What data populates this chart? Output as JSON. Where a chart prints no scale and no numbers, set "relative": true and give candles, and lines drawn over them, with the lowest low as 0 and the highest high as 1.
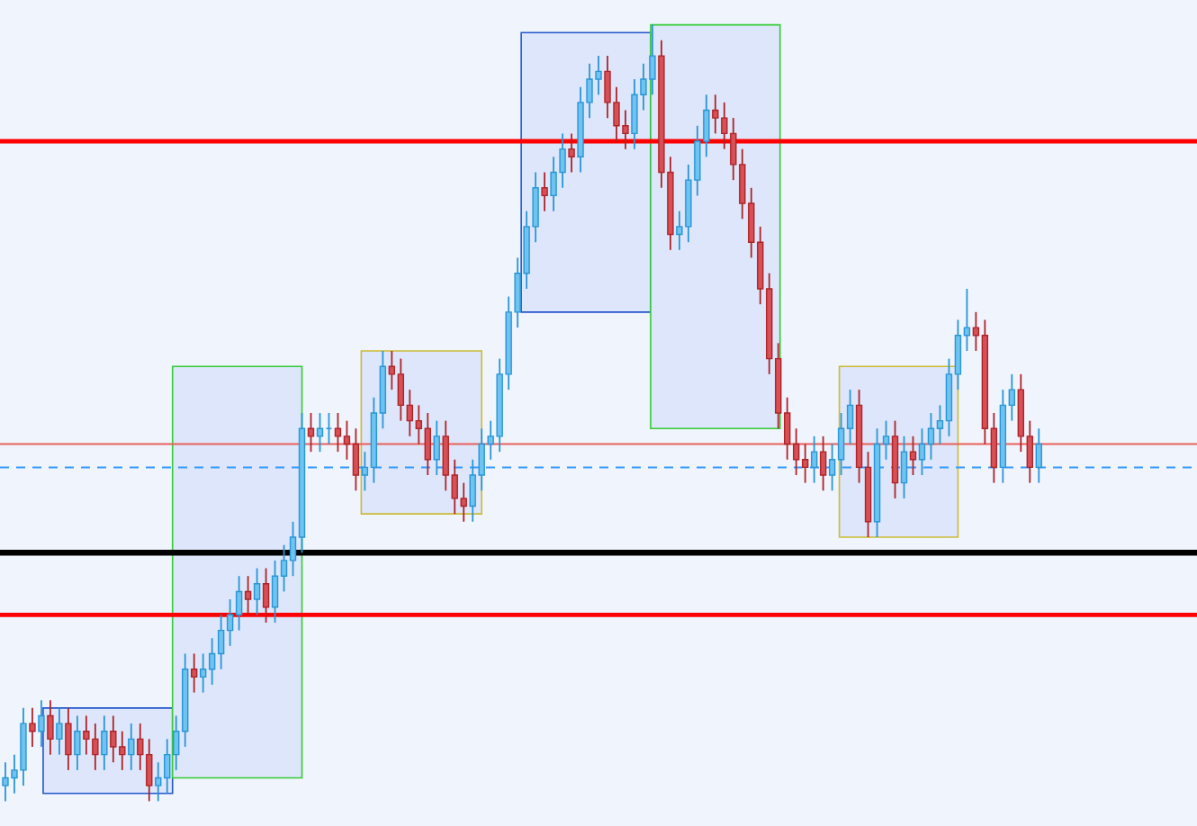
{
  "chart_data": {
    "type": "candlestick",
    "relative": true,
    "tick_labels": false,
    "categories": [
      null,
      null,
      null,
      null,
      null,
      null,
      null,
      null,
      null,
      null,
      null,
      null,
      null,
      null,
      null,
      null,
      null,
      null,
      null,
      null,
      null,
      null,
      null,
      null,
      null,
      null,
      null,
      null,
      null,
      null,
      null,
      null,
      null,
      null,
      null,
      null,
      null,
      null,
      null,
      null,
      null,
      null,
      null,
      null,
      null,
      null,
      null,
      null,
      null,
      null,
      null,
      null,
      null,
      null,
      null,
      null,
      null,
      null,
      null,
      null,
      null,
      null,
      null,
      null,
      null,
      null,
      null,
      null,
      null,
      null,
      null,
      null,
      null,
      null,
      null,
      null,
      null,
      null,
      null,
      null,
      null,
      null,
      null,
      null,
      null,
      null,
      null,
      null,
      null,
      null,
      null,
      null,
      null,
      null,
      null,
      null,
      null,
      null,
      null,
      null,
      null,
      null,
      null,
      null,
      null,
      null,
      null,
      null,
      null,
      null,
      null,
      null,
      null,
      null,
      null,
      null,
      null,
      null,
      null,
      null,
      null,
      null,
      null,
      null,
      null,
      null,
      null,
      null,
      null,
      null,
      null,
      null,
      null
    ],
    "ohlc": [
      [
        0.02,
        0.05,
        0,
        0.03
      ],
      [
        0.03,
        0.06,
        0.01,
        0.04
      ],
      [
        0.04,
        0.12,
        0.02,
        0.1
      ],
      [
        0.1,
        0.12,
        0.07,
        0.09
      ],
      [
        0.09,
        0.13,
        0.07,
        0.11
      ],
      [
        0.11,
        0.13,
        0.06,
        0.08
      ],
      [
        0.08,
        0.12,
        0.06,
        0.1
      ],
      [
        0.1,
        0.12,
        0.04,
        0.06
      ],
      [
        0.06,
        0.11,
        0.04,
        0.09
      ],
      [
        0.09,
        0.11,
        0.06,
        0.08
      ],
      [
        0.08,
        0.1,
        0.04,
        0.06
      ],
      [
        0.06,
        0.11,
        0.04,
        0.09
      ],
      [
        0.09,
        0.11,
        0.05,
        0.07
      ],
      [
        0.07,
        0.09,
        0.04,
        0.06
      ],
      [
        0.06,
        0.1,
        0.04,
        0.08
      ],
      [
        0.08,
        0.1,
        0.04,
        0.06
      ],
      [
        0.06,
        0.08,
        0,
        0.02
      ],
      [
        0.02,
        0.05,
        0,
        0.03
      ],
      [
        0.03,
        0.08,
        0.01,
        0.06
      ],
      [
        0.06,
        0.11,
        0.04,
        0.09
      ],
      [
        0.09,
        0.19,
        0.07,
        0.17
      ],
      [
        0.17,
        0.19,
        0.14,
        0.16
      ],
      [
        0.16,
        0.19,
        0.14,
        0.17
      ],
      [
        0.17,
        0.21,
        0.15,
        0.19
      ],
      [
        0.19,
        0.24,
        0.17,
        0.22
      ],
      [
        0.22,
        0.26,
        0.2,
        0.24
      ],
      [
        0.24,
        0.29,
        0.22,
        0.27
      ],
      [
        0.27,
        0.29,
        0.24,
        0.26
      ],
      [
        0.26,
        0.3,
        0.24,
        0.28
      ],
      [
        0.28,
        0.3,
        0.23,
        0.25
      ],
      [
        0.25,
        0.31,
        0.23,
        0.29
      ],
      [
        0.29,
        0.33,
        0.27,
        0.31
      ],
      [
        0.31,
        0.36,
        0.29,
        0.34
      ],
      [
        0.34,
        0.5,
        0.32,
        0.48
      ],
      [
        0.48,
        0.5,
        0.45,
        0.47
      ],
      [
        0.47,
        0.5,
        0.45,
        0.48
      ],
      [
        0.48,
        0.5,
        0.46,
        0.48
      ],
      [
        0.48,
        0.5,
        0.45,
        0.47
      ],
      [
        0.47,
        0.49,
        0.44,
        0.46
      ],
      [
        0.46,
        0.48,
        0.4,
        0.42
      ],
      [
        0.42,
        0.45,
        0.4,
        0.43
      ],
      [
        0.43,
        0.52,
        0.41,
        0.5
      ],
      [
        0.5,
        0.58,
        0.48,
        0.56
      ],
      [
        0.56,
        0.58,
        0.53,
        0.55
      ],
      [
        0.55,
        0.57,
        0.49,
        0.51
      ],
      [
        0.51,
        0.53,
        0.47,
        0.49
      ],
      [
        0.49,
        0.51,
        0.46,
        0.48
      ],
      [
        0.48,
        0.5,
        0.42,
        0.44
      ],
      [
        0.44,
        0.49,
        0.42,
        0.47
      ],
      [
        0.47,
        0.49,
        0.4,
        0.42
      ],
      [
        0.42,
        0.44,
        0.37,
        0.39
      ],
      [
        0.39,
        0.41,
        0.36,
        0.38
      ],
      [
        0.38,
        0.44,
        0.36,
        0.42
      ],
      [
        0.42,
        0.48,
        0.4,
        0.46
      ],
      [
        0.46,
        0.49,
        0.44,
        0.47
      ],
      [
        0.47,
        0.57,
        0.45,
        0.55
      ],
      [
        0.55,
        0.65,
        0.53,
        0.63
      ],
      [
        0.63,
        0.7,
        0.61,
        0.68
      ],
      [
        0.68,
        0.76,
        0.66,
        0.74
      ],
      [
        0.74,
        0.81,
        0.72,
        0.79
      ],
      [
        0.79,
        0.81,
        0.76,
        0.78
      ],
      [
        0.78,
        0.83,
        0.76,
        0.81
      ],
      [
        0.81,
        0.86,
        0.79,
        0.84
      ],
      [
        0.84,
        0.86,
        0.81,
        0.83
      ],
      [
        0.83,
        0.92,
        0.81,
        0.9
      ],
      [
        0.9,
        0.95,
        0.88,
        0.93
      ],
      [
        0.93,
        0.96,
        0.91,
        0.94
      ],
      [
        0.94,
        0.96,
        0.88,
        0.9
      ],
      [
        0.9,
        0.92,
        0.85,
        0.87
      ],
      [
        0.87,
        0.89,
        0.84,
        0.86
      ],
      [
        0.86,
        0.93,
        0.84,
        0.91
      ],
      [
        0.91,
        0.95,
        0.89,
        0.93
      ],
      [
        0.93,
        1,
        0.91,
        0.96
      ],
      [
        0.96,
        0.98,
        0.79,
        0.81
      ],
      [
        0.81,
        0.83,
        0.71,
        0.73
      ],
      [
        0.73,
        0.76,
        0.71,
        0.74
      ],
      [
        0.74,
        0.82,
        0.72,
        0.8
      ],
      [
        0.8,
        0.87,
        0.78,
        0.85
      ],
      [
        0.85,
        0.91,
        0.83,
        0.89
      ],
      [
        0.89,
        0.91,
        0.86,
        0.88
      ],
      [
        0.88,
        0.9,
        0.84,
        0.86
      ],
      [
        0.86,
        0.88,
        0.8,
        0.82
      ],
      [
        0.82,
        0.84,
        0.75,
        0.77
      ],
      [
        0.77,
        0.79,
        0.7,
        0.72
      ],
      [
        0.72,
        0.74,
        0.64,
        0.66
      ],
      [
        0.66,
        0.68,
        0.55,
        0.57
      ],
      [
        0.57,
        0.59,
        0.48,
        0.5
      ],
      [
        0.5,
        0.52,
        0.44,
        0.46
      ],
      [
        0.46,
        0.48,
        0.42,
        0.44
      ],
      [
        0.44,
        0.46,
        0.41,
        0.43
      ],
      [
        0.43,
        0.47,
        0.41,
        0.45
      ],
      [
        0.45,
        0.47,
        0.4,
        0.42
      ],
      [
        0.42,
        0.46,
        0.4,
        0.44
      ],
      [
        0.44,
        0.5,
        0.42,
        0.48
      ],
      [
        0.48,
        0.53,
        0.46,
        0.51
      ],
      [
        0.51,
        0.53,
        0.41,
        0.43
      ],
      [
        0.43,
        0.45,
        0.34,
        0.36
      ],
      [
        0.36,
        0.48,
        0.34,
        0.46
      ],
      [
        0.46,
        0.49,
        0.44,
        0.47
      ],
      [
        0.47,
        0.49,
        0.39,
        0.41
      ],
      [
        0.41,
        0.47,
        0.39,
        0.45
      ],
      [
        0.45,
        0.47,
        0.42,
        0.44
      ],
      [
        0.44,
        0.48,
        0.42,
        0.46
      ],
      [
        0.46,
        0.5,
        0.44,
        0.48
      ],
      [
        0.48,
        0.51,
        0.46,
        0.49
      ],
      [
        0.49,
        0.57,
        0.47,
        0.55
      ],
      [
        0.55,
        0.62,
        0.53,
        0.6
      ],
      [
        0.6,
        0.66,
        0.58,
        0.61
      ],
      [
        0.61,
        0.63,
        0.58,
        0.6
      ],
      [
        0.6,
        0.62,
        0.46,
        0.48
      ],
      [
        0.48,
        0.5,
        0.41,
        0.43
      ],
      [
        0.43,
        0.53,
        0.41,
        0.51
      ],
      [
        0.51,
        0.55,
        0.49,
        0.53
      ],
      [
        0.53,
        0.55,
        0.45,
        0.47
      ],
      [
        0.47,
        0.49,
        0.41,
        0.43
      ],
      [
        0.43,
        0.48,
        0.41,
        0.46
      ],
      null,
      null,
      null,
      null,
      null,
      null,
      null,
      null,
      null,
      null,
      null,
      null,
      null,
      null,
      null,
      null,
      null
    ],
    "ref_lines": [
      {
        "axis": "y",
        "value": 0.85,
        "color": "#ff0000",
        "line_style": "solid"
      },
      {
        "axis": "y",
        "value": 0.46,
        "color": "#e8605a",
        "line_style": "solid"
      },
      {
        "axis": "y",
        "value": 0.43,
        "color": "#3399ff",
        "line_style": "dashed"
      },
      {
        "axis": "y",
        "value": 0.32,
        "color": "#000000",
        "line_style": "solid"
      },
      {
        "axis": "y",
        "value": 0.24,
        "color": "#ff0000",
        "line_style": "solid"
      }
    ]
  }
}
